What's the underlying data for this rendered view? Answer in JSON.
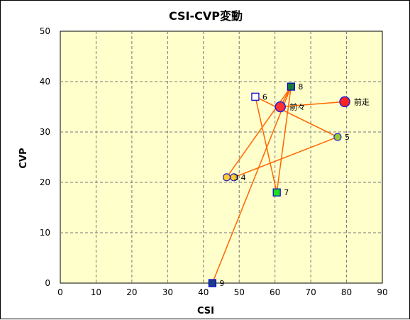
{
  "chart_data": {
    "type": "scatter",
    "title": "CSI-CVP変動",
    "xlabel": "CSI",
    "ylabel": "CVP",
    "xlim": [
      0,
      90
    ],
    "ylim": [
      0,
      50
    ],
    "xticks": [
      0,
      10,
      20,
      30,
      40,
      50,
      60,
      70,
      80,
      90
    ],
    "yticks": [
      0,
      10,
      20,
      30,
      40,
      50
    ],
    "grid": true,
    "plot_bg": "#ffffcc",
    "line_color": "#ff6600",
    "points": [
      {
        "label": "9",
        "x": 42.5,
        "y": 0,
        "marker": "square",
        "fill": "#1a3a8a"
      },
      {
        "label": "8",
        "x": 64.5,
        "y": 39,
        "marker": "square",
        "fill": "#1a7a3a"
      },
      {
        "label": "7",
        "x": 60.5,
        "y": 18,
        "marker": "square",
        "fill": "#22dd22"
      },
      {
        "label": "6",
        "x": 54.5,
        "y": 37,
        "marker": "square",
        "fill": "#ffffff"
      },
      {
        "label": "5",
        "x": 77.5,
        "y": 29,
        "marker": "circle",
        "fill": "#99cc33"
      },
      {
        "label": "4",
        "x": 48.5,
        "y": 21,
        "marker": "circle",
        "fill": "#ffcc33"
      },
      {
        "label": "3",
        "x": 46.5,
        "y": 21,
        "marker": "circle",
        "fill": "#ffcc33"
      },
      {
        "label": "前々",
        "x": 61.5,
        "y": 35,
        "marker": "circle-large",
        "fill": "#ff3333"
      },
      {
        "label": "前走",
        "x": 79.5,
        "y": 36,
        "marker": "circle-large",
        "fill": "#ff2222"
      }
    ],
    "path_order": [
      "9",
      "8",
      "7",
      "6",
      "5",
      "4",
      "3",
      "8",
      "前々",
      "前走"
    ]
  }
}
